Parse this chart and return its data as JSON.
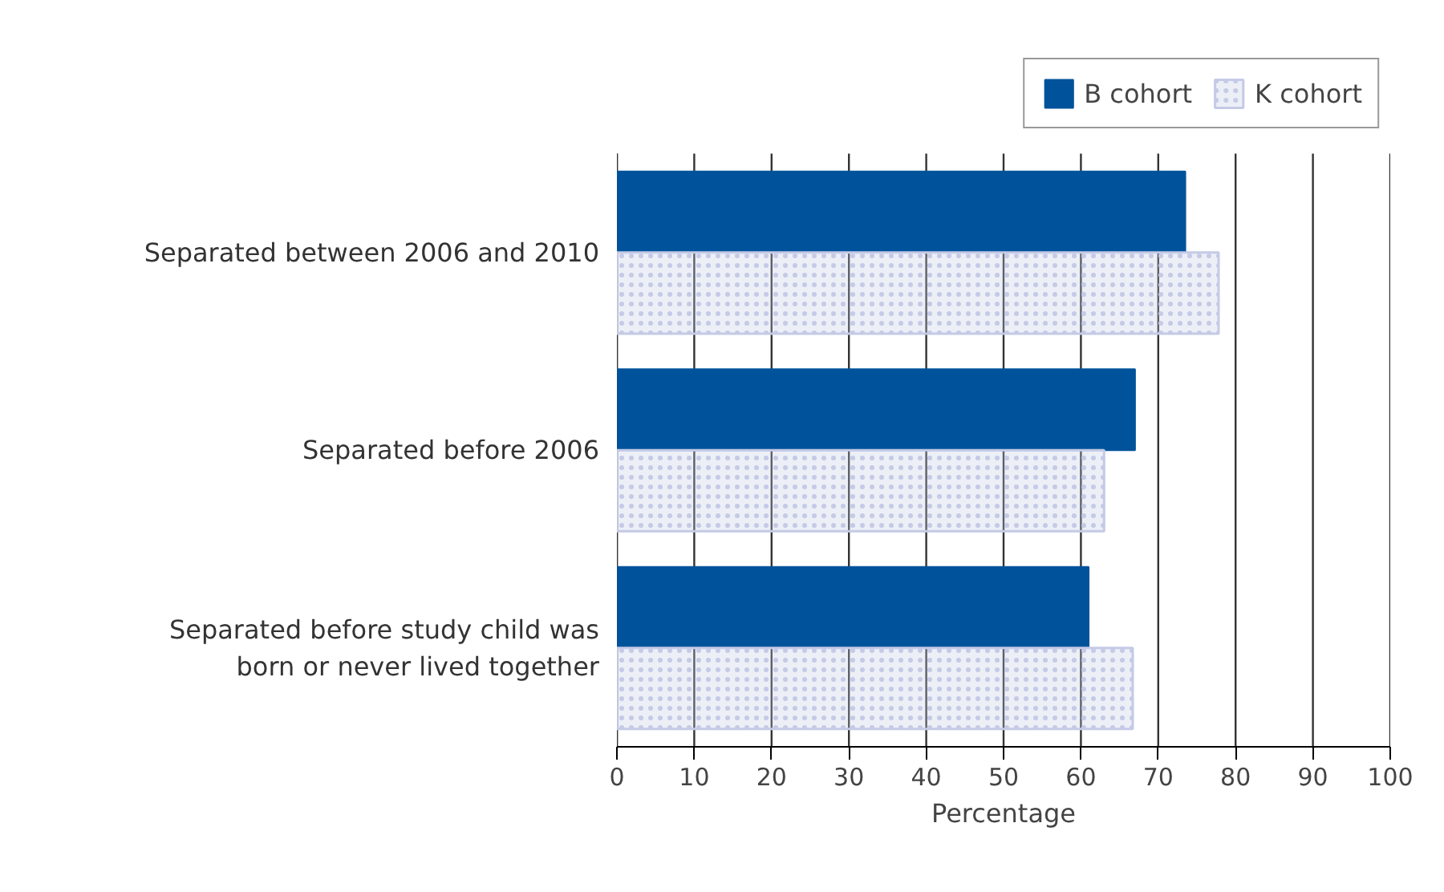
{
  "chart_data": {
    "type": "bar",
    "orientation": "horizontal",
    "xlabel": "Percentage",
    "categories": [
      "Separated between 2006 and 2010",
      "Separated before 2006",
      "Separated before study child was born or never lived together"
    ],
    "series": [
      {
        "name": "B cohort",
        "color": "#00539b",
        "values": [
          73.5,
          67.0,
          61.0
        ]
      },
      {
        "name": "K cohort",
        "color": "#c5cae6",
        "values": [
          77.8,
          63.0,
          66.7
        ]
      }
    ],
    "xlim": [
      0,
      100
    ],
    "xticks": [
      0,
      10,
      20,
      30,
      40,
      50,
      60,
      70,
      80,
      90,
      100
    ],
    "grid": "x",
    "legend": "top right"
  }
}
